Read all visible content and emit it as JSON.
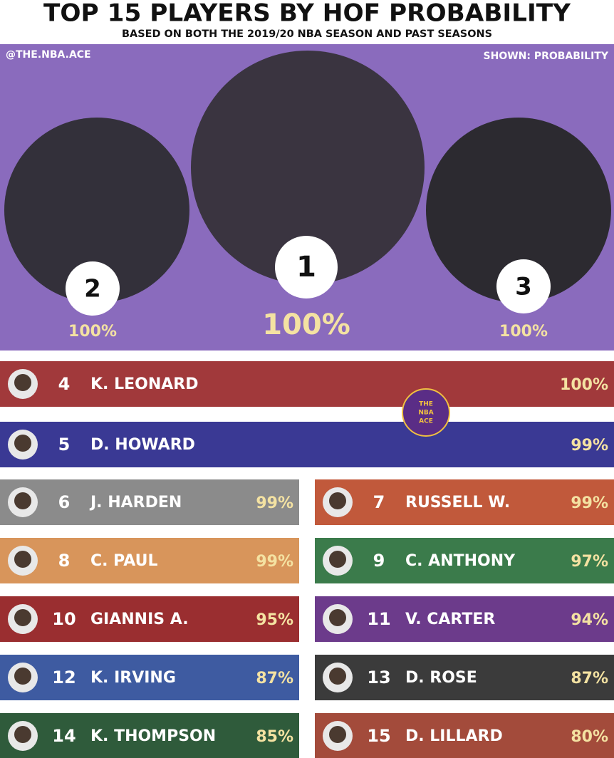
{
  "header": {
    "title": "TOP 15 PLAYERS BY HOF PROBABILITY",
    "subtitle": "BASED ON BOTH THE 2019/20 NBA SEASON AND PAST SEASONS",
    "handle": "@THE.NBA.ACE",
    "shown": "SHOWN: PROBABILITY"
  },
  "podium": [
    {
      "rank": "1",
      "probability": "100%"
    },
    {
      "rank": "2",
      "probability": "100%"
    },
    {
      "rank": "3",
      "probability": "100%"
    }
  ],
  "logo": [
    "THE",
    "NBA",
    "ACE"
  ],
  "players": [
    {
      "rank": "4",
      "name": "K. LEONARD",
      "probability": "100%",
      "color": "#a1393b"
    },
    {
      "rank": "5",
      "name": "D. HOWARD",
      "probability": "99%",
      "color": "#3a3994"
    },
    {
      "rank": "6",
      "name": "J. HARDEN",
      "probability": "99%",
      "color": "#8b8b8b"
    },
    {
      "rank": "7",
      "name": "RUSSELL W.",
      "probability": "99%",
      "color": "#c1593b"
    },
    {
      "rank": "8",
      "name": "C. PAUL",
      "probability": "99%",
      "color": "#d8955b"
    },
    {
      "rank": "9",
      "name": "C. ANTHONY",
      "probability": "97%",
      "color": "#3b7b4b"
    },
    {
      "rank": "10",
      "name": "GIANNIS A.",
      "probability": "95%",
      "color": "#9a2e30"
    },
    {
      "rank": "11",
      "name": "V. CARTER",
      "probability": "94%",
      "color": "#6c3b8b"
    },
    {
      "rank": "12",
      "name": "K. IRVING",
      "probability": "87%",
      "color": "#3e5ba1"
    },
    {
      "rank": "13",
      "name": "D. ROSE",
      "probability": "87%",
      "color": "#3b3b3b"
    },
    {
      "rank": "14",
      "name": "K. THOMPSON",
      "probability": "85%",
      "color": "#2f5b3b"
    },
    {
      "rank": "15",
      "name": "D. LILLARD",
      "probability": "80%",
      "color": "#a34b3b"
    }
  ]
}
